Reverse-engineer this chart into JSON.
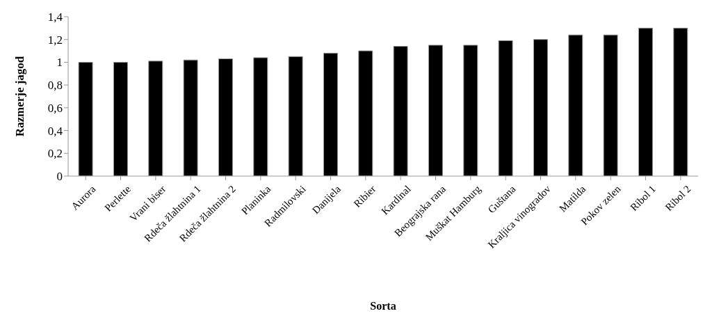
{
  "chart_data": {
    "type": "bar",
    "xlabel": "Sorta",
    "ylabel": "Razmerje jagod",
    "categories": [
      "Aurora",
      "Perlette",
      "Vrani biser",
      "Rdeča žlahtnina 1",
      "Rdeča žlahtnina 2",
      "Planinka",
      "Radmilovski",
      "Danijela",
      "Ribier",
      "Kardinal",
      "Beograjska rana",
      "Muškat Hamburg",
      "Guštana",
      "Kraljica vinogradov",
      "Matilda",
      "Pokov zelen",
      "Ribol 1",
      "Ribol 2"
    ],
    "values": [
      1.0,
      1.0,
      1.01,
      1.02,
      1.03,
      1.04,
      1.05,
      1.08,
      1.1,
      1.14,
      1.15,
      1.15,
      1.19,
      1.2,
      1.24,
      1.24,
      1.3,
      1.3
    ],
    "color": "#000000",
    "ylim": [
      0,
      1.4
    ],
    "yticks": [
      0,
      {
        "value": 0.2,
        "label": "0,2"
      },
      {
        "value": 0.4,
        "label": "0,4"
      },
      {
        "value": 0.6,
        "label": "0,6"
      },
      {
        "value": 0.8,
        "label": "0,8"
      },
      1,
      {
        "value": 1.2,
        "label": "1,2"
      },
      {
        "value": 1.4,
        "label": "1,4"
      }
    ]
  }
}
